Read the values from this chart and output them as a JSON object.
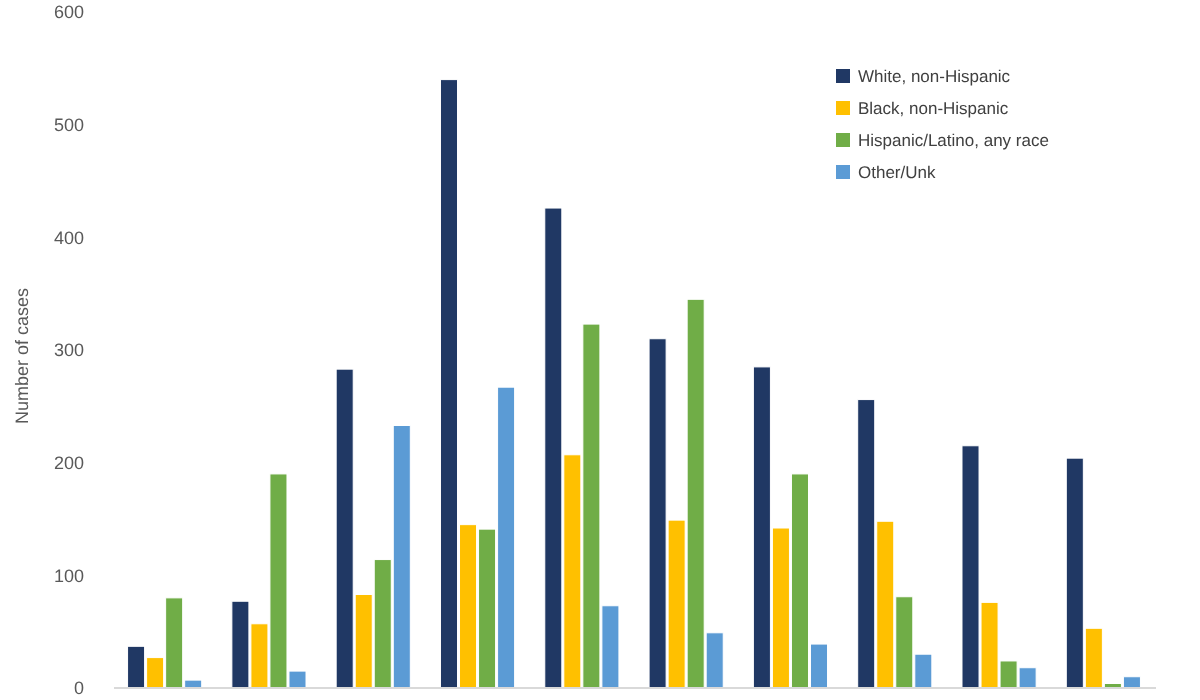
{
  "chart_data": {
    "type": "bar",
    "ylabel": "Number of cases",
    "categories": [
      null,
      null,
      null,
      null,
      null,
      null,
      null,
      null,
      null,
      null
    ],
    "series": [
      {
        "name": "White, non-Hispanic",
        "color": "#203864",
        "values": [
          37,
          77,
          283,
          540,
          426,
          310,
          285,
          256,
          215,
          204
        ]
      },
      {
        "name": "Black, non-Hispanic",
        "color": "#ffc000",
        "values": [
          27,
          57,
          83,
          145,
          207,
          149,
          142,
          148,
          76,
          53
        ]
      },
      {
        "name": "Hispanic/Latino, any race",
        "color": "#70ad47",
        "values": [
          80,
          190,
          114,
          141,
          323,
          345,
          190,
          81,
          24,
          4
        ]
      },
      {
        "name": "Other/Unk",
        "color": "#5b9bd5",
        "values": [
          7,
          15,
          233,
          267,
          73,
          49,
          39,
          30,
          18,
          10
        ]
      }
    ],
    "ylim": [
      0,
      600
    ],
    "yticks": [
      0,
      100,
      200,
      300,
      400,
      500,
      600
    ],
    "legend": "top right",
    "grid": false,
    "tick_labels": "y"
  }
}
